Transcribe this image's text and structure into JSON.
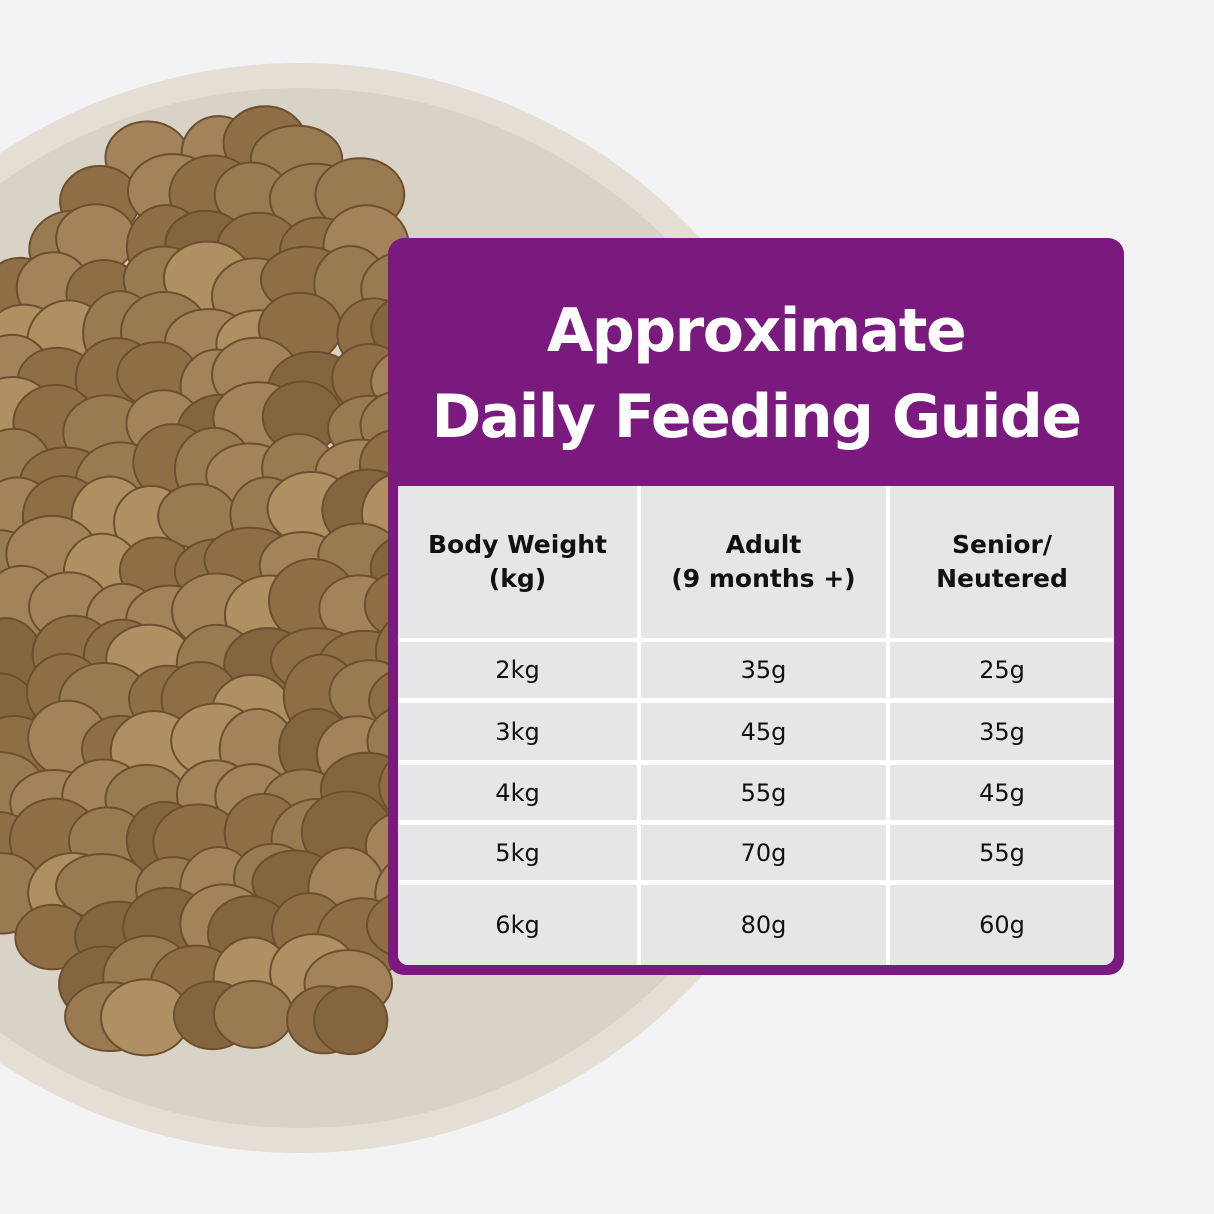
{
  "colors": {
    "card": "#7a1a7e",
    "cell": "#e6e6e8",
    "background": "#f3f3f6",
    "bowl": "#e3ddd3",
    "kibble": "#9c7a4e"
  },
  "title_line1": "Approximate",
  "title_line2": "Daily Feeding Guide",
  "table": {
    "headers": [
      "Body Weight\n(kg)",
      "Adult\n(9 months +)",
      "Senior/\nNeutered"
    ],
    "rows": [
      [
        "2kg",
        "35g",
        "25g"
      ],
      [
        "3kg",
        "45g",
        "35g"
      ],
      [
        "4kg",
        "55g",
        "45g"
      ],
      [
        "5kg",
        "70g",
        "55g"
      ],
      [
        "6kg",
        "80g",
        "60g"
      ]
    ]
  }
}
